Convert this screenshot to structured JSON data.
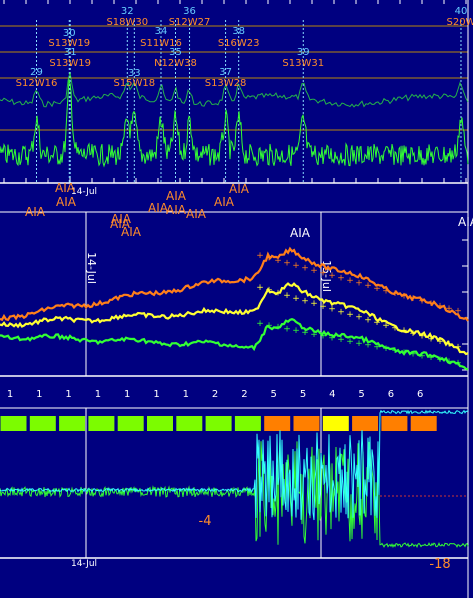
{
  "colors": {
    "background": "#000080",
    "panel_line": "#ffffff",
    "green": "#33ff33",
    "orange": "#ff7f1a",
    "yellow": "#ffff33",
    "cyan": "#33ffff",
    "region_label": "#ff8c2a",
    "region_number": "#66ccff",
    "gold_grid": "#b8860b",
    "dotted": "#88ddff"
  },
  "chart_data": [
    {
      "type": "line",
      "panel": "flares-regions",
      "regions": [
        {
          "number": "29",
          "location": "S12W16",
          "t": 0.078
        },
        {
          "number": "30",
          "location": "S13W19",
          "t": 0.148
        },
        {
          "number": "31",
          "location": "S13W19",
          "t": 0.15
        },
        {
          "number": "32",
          "location": "S18W30",
          "t": 0.272
        },
        {
          "number": "33",
          "location": "S15W18",
          "t": 0.287
        },
        {
          "number": "34",
          "location": "S11W16",
          "t": 0.344
        },
        {
          "number": "35",
          "location": "N12W38",
          "t": 0.375
        },
        {
          "number": "36",
          "location": "S12W27",
          "t": 0.405
        },
        {
          "number": "37",
          "location": "S13W28",
          "t": 0.482
        },
        {
          "number": "38",
          "location": "S16W23",
          "t": 0.51
        },
        {
          "number": "39",
          "location": "S13W31",
          "t": 0.648
        },
        {
          "number": "40",
          "location": "S20W",
          "t": 0.985
        }
      ],
      "date_label": "14-Jul",
      "aia_labels": [
        "AIA",
        "AIA",
        "AIA",
        "AIA",
        "AIA",
        "AIA",
        "AIA",
        "AIA",
        "AIA",
        "AIA",
        "AIA",
        "AIA"
      ]
    },
    {
      "type": "line",
      "panel": "goes-xray",
      "series": [
        {
          "color_key": "orange"
        },
        {
          "color_key": "yellow"
        },
        {
          "color_key": "green"
        }
      ],
      "labels": [
        "AIA",
        "AIA",
        "14-Jul",
        "15-Jul"
      ]
    },
    {
      "type": "heatmap",
      "panel": "kp-index",
      "kp_values": [
        "1",
        "1",
        "1",
        "1",
        "1",
        "1",
        "1",
        "2",
        "2",
        "5",
        "5",
        "4",
        "5",
        "6",
        "6"
      ],
      "bar_colors": [
        "green",
        "green",
        "green",
        "green",
        "green",
        "green",
        "green",
        "green",
        "green",
        "orange",
        "orange",
        "yellow",
        "orange",
        "orange",
        "orange"
      ]
    },
    {
      "type": "line",
      "panel": "magnetometer",
      "series": [
        {
          "color_key": "cyan"
        },
        {
          "color_key": "green"
        }
      ],
      "annotations": [
        "-4",
        "-18"
      ],
      "date_label": "14-Jul"
    }
  ]
}
